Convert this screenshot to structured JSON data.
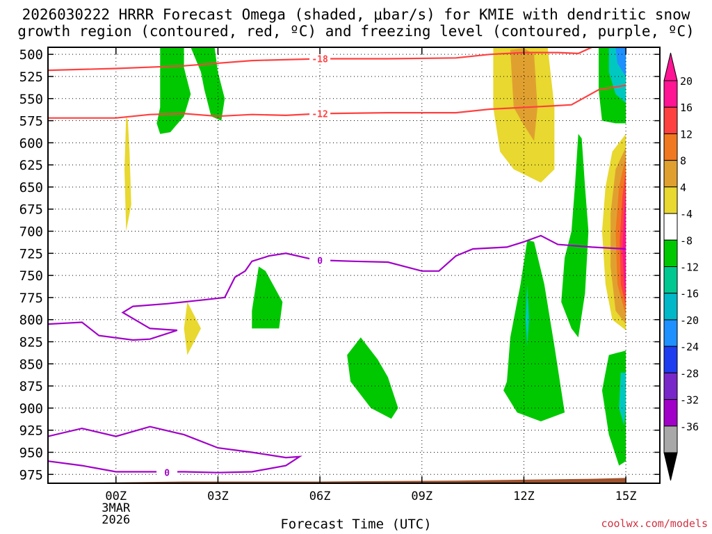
{
  "title": {
    "line1": "2026030222 HRRR Forecast Omega (shaded, μbar/s) for KMIE with dendritic snow",
    "line2": "growth region (contoured, red, ºC) and freezing level (contoured, purple, ºC)"
  },
  "credit": "coolwx.com/models",
  "chart_data": {
    "type": "contour",
    "title": "2026030222 HRRR Forecast Omega (shaded, μbar/s) for KMIE with dendritic snow growth region (contoured, red, ºC) and freezing level (contoured, purple, ºC)",
    "xlabel": "Forecast Time (UTC)",
    "ylabel": "",
    "x_unit": "hours since 00Z 3MAR2026",
    "xlim": [
      -2,
      16
    ],
    "ylim": [
      985,
      492
    ],
    "y_ticks": [
      500,
      525,
      550,
      575,
      600,
      625,
      650,
      675,
      700,
      725,
      750,
      775,
      800,
      825,
      850,
      875,
      900,
      925,
      950,
      975
    ],
    "x_ticks": [
      {
        "x": 0,
        "lines": [
          "00Z",
          "3MAR",
          "2026"
        ]
      },
      {
        "x": 3,
        "lines": [
          "03Z"
        ]
      },
      {
        "x": 6,
        "lines": [
          "06Z"
        ]
      },
      {
        "x": 9,
        "lines": [
          "09Z"
        ]
      },
      {
        "x": 12,
        "lines": [
          "12Z"
        ]
      },
      {
        "x": 15,
        "lines": [
          "15Z"
        ]
      }
    ],
    "grid": true,
    "colorbar": {
      "labels": [
        20,
        16,
        12,
        8,
        4,
        -4,
        -8,
        -12,
        -16,
        -20,
        -24,
        -28,
        -32,
        -36
      ],
      "bins": [
        {
          "color": "#ff1493"
        },
        {
          "color": "#ff4040"
        },
        {
          "color": "#f07820"
        },
        {
          "color": "#e0a030"
        },
        {
          "color": "#e8d830"
        },
        {
          "color": "#ffffff"
        },
        {
          "color": "#00c800"
        },
        {
          "color": "#00c890"
        },
        {
          "color": "#00b8c8"
        },
        {
          "color": "#1e90ff"
        },
        {
          "color": "#1e3cf0"
        },
        {
          "color": "#7828c8"
        },
        {
          "color": "#a000c8"
        },
        {
          "color": "#a8a8a8"
        }
      ],
      "top_arrow_color": "#ff1493",
      "bottom_arrow_color": "#000000"
    },
    "omega_regions": [
      {
        "color": "#00c800",
        "points": [
          [
            1.3,
            492
          ],
          [
            1.3,
            560
          ],
          [
            1.2,
            578
          ],
          [
            1.3,
            590
          ],
          [
            1.6,
            588
          ],
          [
            2.0,
            570
          ],
          [
            2.2,
            545
          ],
          [
            2.0,
            515
          ],
          [
            2.0,
            492
          ]
        ]
      },
      {
        "color": "#00c800",
        "points": [
          [
            2.2,
            492
          ],
          [
            2.5,
            520
          ],
          [
            2.6,
            540
          ],
          [
            2.8,
            570
          ],
          [
            3.1,
            575
          ],
          [
            3.2,
            550
          ],
          [
            3.0,
            520
          ],
          [
            2.9,
            492
          ]
        ]
      },
      {
        "color": "#e8d830",
        "points": [
          [
            11.1,
            492
          ],
          [
            11.1,
            560
          ],
          [
            11.3,
            610
          ],
          [
            11.7,
            630
          ],
          [
            12.5,
            645
          ],
          [
            12.9,
            630
          ],
          [
            12.9,
            560
          ],
          [
            12.7,
            492
          ]
        ]
      },
      {
        "color": "#e0a030",
        "points": [
          [
            11.6,
            495
          ],
          [
            11.7,
            560
          ],
          [
            12.0,
            580
          ],
          [
            12.3,
            598
          ],
          [
            12.4,
            560
          ],
          [
            12.3,
            500
          ],
          [
            12.0,
            493
          ]
        ]
      },
      {
        "color": "#e8d830",
        "points": [
          [
            0.3,
            570
          ],
          [
            0.25,
            630
          ],
          [
            0.3,
            700
          ],
          [
            0.45,
            670
          ],
          [
            0.4,
            610
          ],
          [
            0.35,
            575
          ]
        ]
      },
      {
        "color": "#00c800",
        "points": [
          [
            4.2,
            740
          ],
          [
            4.0,
            790
          ],
          [
            4.0,
            810
          ],
          [
            4.8,
            810
          ],
          [
            4.9,
            780
          ],
          [
            4.4,
            745
          ]
        ]
      },
      {
        "color": "#e8d830",
        "points": [
          [
            2.1,
            780
          ],
          [
            2.0,
            810
          ],
          [
            2.1,
            840
          ],
          [
            2.5,
            810
          ]
        ]
      },
      {
        "color": "#00c800",
        "points": [
          [
            7.2,
            820
          ],
          [
            6.8,
            840
          ],
          [
            6.9,
            870
          ],
          [
            7.5,
            900
          ],
          [
            8.1,
            912
          ],
          [
            8.3,
            900
          ],
          [
            8.0,
            865
          ],
          [
            7.7,
            845
          ]
        ]
      },
      {
        "color": "#00c800",
        "points": [
          [
            12.1,
            710
          ],
          [
            11.9,
            760
          ],
          [
            11.6,
            820
          ],
          [
            11.5,
            870
          ],
          [
            11.4,
            880
          ],
          [
            11.8,
            905
          ],
          [
            12.5,
            915
          ],
          [
            13.2,
            905
          ],
          [
            12.9,
            830
          ],
          [
            12.6,
            760
          ],
          [
            12.3,
            712
          ]
        ]
      },
      {
        "color": "#00c8c0",
        "points": [
          [
            12.1,
            760
          ],
          [
            12.05,
            800
          ],
          [
            12.1,
            830
          ],
          [
            12.15,
            800
          ]
        ]
      },
      {
        "color": "#00c800",
        "points": [
          [
            13.6,
            590
          ],
          [
            13.5,
            650
          ],
          [
            13.4,
            700
          ],
          [
            13.2,
            730
          ],
          [
            13.1,
            780
          ],
          [
            13.4,
            810
          ],
          [
            13.6,
            820
          ],
          [
            13.8,
            770
          ],
          [
            13.9,
            700
          ],
          [
            13.8,
            650
          ],
          [
            13.7,
            595
          ]
        ]
      },
      {
        "color": "#00c800",
        "points": [
          [
            14.2,
            492
          ],
          [
            14.2,
            540
          ],
          [
            14.3,
            575
          ],
          [
            14.7,
            578
          ],
          [
            15.0,
            578
          ],
          [
            15.0,
            492
          ]
        ]
      },
      {
        "color": "#00c8c0",
        "points": [
          [
            14.5,
            492
          ],
          [
            14.5,
            520
          ],
          [
            14.7,
            545
          ],
          [
            15.0,
            555
          ],
          [
            15.0,
            492
          ]
        ]
      },
      {
        "color": "#1e90ff",
        "points": [
          [
            14.7,
            492
          ],
          [
            14.75,
            510
          ],
          [
            15.0,
            525
          ],
          [
            15.0,
            492
          ]
        ]
      },
      {
        "color": "#e8d830",
        "points": [
          [
            15.0,
            590
          ],
          [
            14.6,
            610
          ],
          [
            14.4,
            650
          ],
          [
            14.3,
            700
          ],
          [
            14.4,
            760
          ],
          [
            14.6,
            800
          ],
          [
            15.0,
            812
          ]
        ]
      },
      {
        "color": "#e0a030",
        "points": [
          [
            15.0,
            605
          ],
          [
            14.7,
            630
          ],
          [
            14.55,
            680
          ],
          [
            14.55,
            740
          ],
          [
            14.7,
            790
          ],
          [
            15.0,
            805
          ]
        ]
      },
      {
        "color": "#f07820",
        "points": [
          [
            15.0,
            615
          ],
          [
            14.8,
            650
          ],
          [
            14.7,
            700
          ],
          [
            14.75,
            760
          ],
          [
            15.0,
            795
          ]
        ]
      },
      {
        "color": "#ff4040",
        "points": [
          [
            15.0,
            630
          ],
          [
            14.9,
            660
          ],
          [
            14.82,
            710
          ],
          [
            14.85,
            760
          ],
          [
            15.0,
            785
          ]
        ]
      },
      {
        "color": "#ff1493",
        "points": [
          [
            15.0,
            650
          ],
          [
            14.95,
            680
          ],
          [
            14.9,
            720
          ],
          [
            14.95,
            760
          ],
          [
            15.0,
            775
          ]
        ]
      },
      {
        "color": "#00c800",
        "points": [
          [
            14.5,
            840
          ],
          [
            14.3,
            880
          ],
          [
            14.5,
            930
          ],
          [
            14.8,
            965
          ],
          [
            15.0,
            960
          ],
          [
            15.0,
            835
          ],
          [
            14.7,
            838
          ]
        ]
      },
      {
        "color": "#00c8c0",
        "points": [
          [
            14.85,
            860
          ],
          [
            14.8,
            900
          ],
          [
            14.95,
            920
          ],
          [
            15.0,
            900
          ],
          [
            15.0,
            860
          ]
        ]
      }
    ],
    "contours": [
      {
        "label": "-18",
        "color": "#ff4040",
        "label_at": [
          6.0,
          505
        ],
        "points": [
          [
            -2,
            518
          ],
          [
            0,
            516
          ],
          [
            2,
            513
          ],
          [
            4,
            507
          ],
          [
            6,
            505
          ],
          [
            8,
            505
          ],
          [
            10,
            504
          ],
          [
            11,
            500
          ],
          [
            12,
            498
          ],
          [
            13,
            498
          ],
          [
            13.6,
            499
          ],
          [
            14.0,
            492
          ]
        ]
      },
      {
        "label": "-12",
        "color": "#ff4040",
        "label_at": [
          6.0,
          567
        ],
        "points": [
          [
            -2,
            572
          ],
          [
            0,
            572
          ],
          [
            1,
            568
          ],
          [
            2,
            567
          ],
          [
            3,
            570
          ],
          [
            4,
            568
          ],
          [
            5,
            569
          ],
          [
            6,
            567
          ],
          [
            8,
            566
          ],
          [
            10,
            566
          ],
          [
            11,
            562
          ],
          [
            12,
            560
          ],
          [
            13,
            558
          ],
          [
            13.4,
            557
          ],
          [
            14.2,
            540
          ],
          [
            15.0,
            535
          ]
        ]
      },
      {
        "label": "0",
        "color": "#a000c8",
        "label_at": [
          6.0,
          733
        ],
        "points": [
          [
            -2,
            805
          ],
          [
            -1.5,
            804
          ],
          [
            -1.0,
            803
          ],
          [
            -0.5,
            818
          ],
          [
            0.5,
            823
          ],
          [
            1.0,
            822
          ],
          [
            1.8,
            812
          ],
          [
            1.0,
            810
          ],
          [
            0.2,
            792
          ],
          [
            0.5,
            785
          ],
          [
            1.5,
            782
          ],
          [
            2.5,
            778
          ],
          [
            3.2,
            775
          ],
          [
            3.5,
            752
          ],
          [
            3.8,
            745
          ],
          [
            4.0,
            734
          ],
          [
            4.5,
            728
          ],
          [
            5.0,
            725
          ],
          [
            5.8,
            732
          ],
          [
            6.2,
            733
          ],
          [
            7.0,
            734
          ],
          [
            8.0,
            735
          ],
          [
            9.0,
            745
          ],
          [
            9.5,
            745
          ],
          [
            10.0,
            728
          ],
          [
            10.5,
            720
          ],
          [
            11.5,
            718
          ],
          [
            12.0,
            712
          ],
          [
            12.5,
            705
          ],
          [
            13.0,
            715
          ],
          [
            14.0,
            718
          ],
          [
            15.0,
            720
          ]
        ]
      },
      {
        "label": "0",
        "color": "#a000c8",
        "label_at": [
          1.5,
          973
        ],
        "points": [
          [
            -2,
            932
          ],
          [
            -1.0,
            923
          ],
          [
            0,
            932
          ],
          [
            1,
            921
          ],
          [
            2,
            930
          ],
          [
            3,
            945
          ],
          [
            4,
            950
          ],
          [
            5,
            956
          ],
          [
            5.4,
            955
          ],
          [
            5.0,
            965
          ],
          [
            4.0,
            972
          ],
          [
            3.0,
            973
          ],
          [
            2.0,
            972
          ],
          [
            0.0,
            972
          ],
          [
            -1.0,
            965
          ],
          [
            -2,
            960
          ]
        ]
      }
    ],
    "terrain": {
      "color": "#a0522d",
      "points": [
        [
          -2,
          985
        ],
        [
          2,
          983
        ],
        [
          6,
          983
        ],
        [
          10,
          982
        ],
        [
          14,
          980
        ],
        [
          15,
          979
        ],
        [
          15,
          985
        ]
      ]
    }
  }
}
